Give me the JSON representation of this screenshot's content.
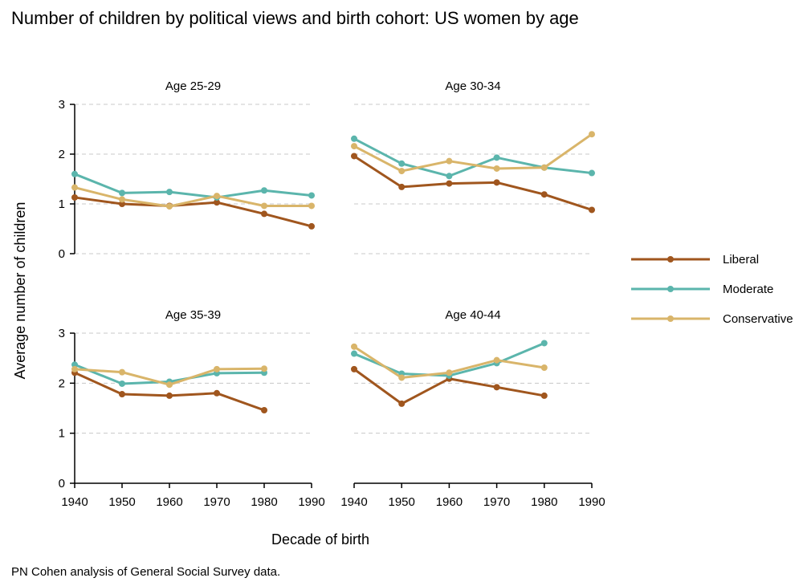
{
  "chart_data": {
    "type": "line",
    "title": "Number of children by political views and birth cohort: US women by age",
    "xlabel": "Decade of birth",
    "ylabel": "Average number of children",
    "source": "PN Cohen analysis of General Social Survey data.",
    "x": [
      1940,
      1950,
      1960,
      1970,
      1980,
      1990
    ],
    "x_tick_labels": [
      "1940",
      "1950",
      "1960",
      "1970",
      "1980",
      "1990"
    ],
    "xlim": [
      1940,
      1990
    ],
    "ylim": [
      0,
      3
    ],
    "y_ticks": [
      0,
      1,
      2,
      3
    ],
    "y_tick_labels": [
      "0",
      "1",
      "2",
      "3"
    ],
    "grid": "horizontal dashed",
    "legend_position": "right",
    "series_colors": {
      "Liberal": "#a0561e",
      "Moderate": "#5bb5ac",
      "Conservative": "#d9b56a"
    },
    "legend": [
      "Liberal",
      "Moderate",
      "Conservative"
    ],
    "panels": [
      {
        "title": "Age 25-29",
        "series": [
          {
            "name": "Liberal",
            "values": [
              1.13,
              1.0,
              0.96,
              1.03,
              0.8,
              0.55
            ]
          },
          {
            "name": "Moderate",
            "values": [
              1.6,
              1.22,
              1.24,
              1.13,
              1.27,
              1.17
            ]
          },
          {
            "name": "Conservative",
            "values": [
              1.33,
              1.09,
              0.95,
              1.16,
              0.96,
              0.96
            ]
          }
        ]
      },
      {
        "title": "Age 30-34",
        "series": [
          {
            "name": "Liberal",
            "values": [
              1.96,
              1.34,
              1.41,
              1.43,
              1.19,
              0.88
            ]
          },
          {
            "name": "Moderate",
            "values": [
              2.31,
              1.81,
              1.56,
              1.93,
              1.73,
              1.62
            ]
          },
          {
            "name": "Conservative",
            "values": [
              2.16,
              1.66,
              1.86,
              1.71,
              1.73,
              2.4
            ]
          }
        ]
      },
      {
        "title": "Age 35-39",
        "series": [
          {
            "name": "Liberal",
            "values": [
              2.21,
              1.78,
              1.75,
              1.8,
              1.46,
              null
            ]
          },
          {
            "name": "Moderate",
            "values": [
              2.37,
              1.99,
              2.03,
              2.2,
              2.21,
              null
            ]
          },
          {
            "name": "Conservative",
            "values": [
              2.28,
              2.22,
              1.97,
              2.28,
              2.29,
              null
            ]
          }
        ]
      },
      {
        "title": "Age 40-44",
        "series": [
          {
            "name": "Liberal",
            "values": [
              2.28,
              1.59,
              2.09,
              1.92,
              1.75,
              null
            ]
          },
          {
            "name": "Moderate",
            "values": [
              2.59,
              2.19,
              2.15,
              2.4,
              2.8,
              null
            ]
          },
          {
            "name": "Conservative",
            "values": [
              2.73,
              2.11,
              2.21,
              2.46,
              2.31,
              null
            ]
          }
        ]
      }
    ]
  }
}
